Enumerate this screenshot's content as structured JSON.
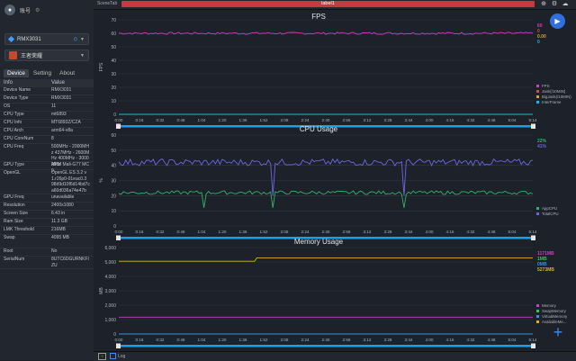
{
  "user": {
    "name": "账号",
    "icon": "avatar-icon"
  },
  "device_select": {
    "value": "RMX3031",
    "icon": "wifi-icon"
  },
  "app_select": {
    "value": "王者荣耀"
  },
  "tabs": [
    {
      "label": "Device"
    },
    {
      "label": "Setting"
    },
    {
      "label": "About"
    }
  ],
  "info_table": {
    "headers": [
      "Info",
      "Value"
    ],
    "rows": [
      {
        "k": "Device Name",
        "v": "RMX3031",
        "h": 9
      },
      {
        "k": "Device Type",
        "v": "RMX3031",
        "h": 9
      },
      {
        "k": "OS",
        "v": "11",
        "h": 9
      },
      {
        "k": "CPU Type",
        "v": "mt6893",
        "h": 9
      },
      {
        "k": "CPU Info",
        "v": "MT6893Z/CZA",
        "h": 9
      },
      {
        "k": "CPU Arch",
        "v": "arm64-v8a",
        "h": 9
      },
      {
        "k": "CPU CoreNum",
        "v": "8",
        "h": 9
      },
      {
        "k": "CPU Freq",
        "v": "500MHz - 2000MHz 437MHz - 2600MHz 400MHz - 3000MHz",
        "h": 20
      },
      {
        "k": "GPU Type",
        "v": "ARM Mali-G77 MC9",
        "h": 9
      },
      {
        "k": "OpenGL",
        "v": "OpenGL ES 3.2 v1.r26p0-01eac0.3 98d9d10f6d14bd7c a60d036a74e47b",
        "h": 27
      },
      {
        "k": "GPU Freq",
        "v": "unavailable",
        "h": 9
      },
      {
        "k": "Resolution",
        "v": "2400x1080",
        "h": 9
      },
      {
        "k": "Screen Size",
        "v": "6.43 in",
        "h": 9
      },
      {
        "k": "Ram Size",
        "v": "11.3 GB",
        "h": 9
      },
      {
        "k": "LMK Threshold",
        "v": "216MB",
        "h": 9
      },
      {
        "k": "Swap",
        "v": "4095 MB",
        "h": 15
      },
      {
        "k": "Root",
        "v": "No",
        "h": 9
      },
      {
        "k": "SerialNum",
        "v": "8UTC6DGURNKFIZU",
        "h": 14
      }
    ]
  },
  "topbar": {
    "scene_tab": "SceneTab",
    "label": "label1"
  },
  "bottom": {
    "log_label": "Log"
  },
  "colors": {
    "accent": "#2f6fe0",
    "label_bar": "#c53b40",
    "fps": "#d03dbf",
    "cpu_app": "#2fb36a",
    "cpu_total": "#6a67e0",
    "memory": "#c045c5",
    "swap": "#3bbd6a",
    "virtual": "#3a8fe0",
    "available": "#d8b51c"
  },
  "chart_data": [
    {
      "type": "line",
      "title": "FPS",
      "ylabel": "FPS",
      "ylim": [
        0,
        70
      ],
      "yticks": [
        "0",
        "10",
        "20",
        "30",
        "40",
        "50",
        "60",
        "70"
      ],
      "x_ticks": [
        "0:00",
        "0:16",
        "0:32",
        "0:48",
        "1:04",
        "1:20",
        "1:36",
        "1:52",
        "2:08",
        "2:24",
        "2:40",
        "2:56",
        "3:12",
        "3:28",
        "3:44",
        "4:00",
        "4:16",
        "4:32",
        "4:48",
        "5:04",
        "5:14"
      ],
      "series": [
        {
          "name": "FPS",
          "value_label": "60",
          "mean": 60,
          "noise": 0.8
        },
        {
          "name": "Jank(/10MIN)",
          "value_label": "0",
          "mean": 0,
          "noise": 0
        },
        {
          "name": "BigJank(/10MIN)",
          "value_label": "0.00",
          "mean": 0,
          "noise": 0
        },
        {
          "name": "InterFrame",
          "value_label": "0",
          "mean": 0,
          "noise": 0
        }
      ]
    },
    {
      "type": "line",
      "title": "CPU Usage",
      "ylabel": "%",
      "ylim": [
        0,
        60
      ],
      "yticks": [
        "0",
        "10",
        "20",
        "30",
        "40",
        "50",
        "60"
      ],
      "x_ticks": [
        "0:00",
        "0:16",
        "0:32",
        "0:48",
        "1:04",
        "1:20",
        "1:36",
        "1:52",
        "2:08",
        "2:24",
        "2:40",
        "2:56",
        "3:12",
        "3:28",
        "3:44",
        "4:00",
        "4:16",
        "4:32",
        "4:48",
        "5:04",
        "5:14"
      ],
      "series": [
        {
          "name": "AppCPU",
          "value_label": "22%",
          "mean": 22,
          "noise": 1.2
        },
        {
          "name": "TotalCPU",
          "value_label": "41%",
          "mean": 42,
          "noise": 2.2
        }
      ]
    },
    {
      "type": "line",
      "title": "Memory Usage",
      "ylabel": "MB",
      "ylim": [
        0,
        6000
      ],
      "yticks": [
        "0",
        "1,000",
        "2,000",
        "3,000",
        "4,000",
        "5,000",
        "6,000"
      ],
      "x_ticks": [
        "0:00",
        "0:16",
        "0:32",
        "0:48",
        "1:04",
        "1:20",
        "1:36",
        "1:52",
        "2:08",
        "2:24",
        "2:40",
        "2:56",
        "3:12",
        "3:28",
        "3:44",
        "4:00",
        "4:16",
        "4:32",
        "4:48",
        "5:04",
        "5:14"
      ],
      "series": [
        {
          "name": "Memory",
          "value_label": "1171MB",
          "mean": 1171,
          "noise": 0
        },
        {
          "name": "SwapMemory",
          "value_label": "1MB",
          "mean": 1,
          "noise": 0
        },
        {
          "name": "VirtualMemory",
          "value_label": "0MB",
          "mean": 0,
          "noise": 0
        },
        {
          "name": "AvailableMe...",
          "value_label": "5273MB",
          "mean": 5273,
          "noise": 0
        }
      ]
    }
  ]
}
